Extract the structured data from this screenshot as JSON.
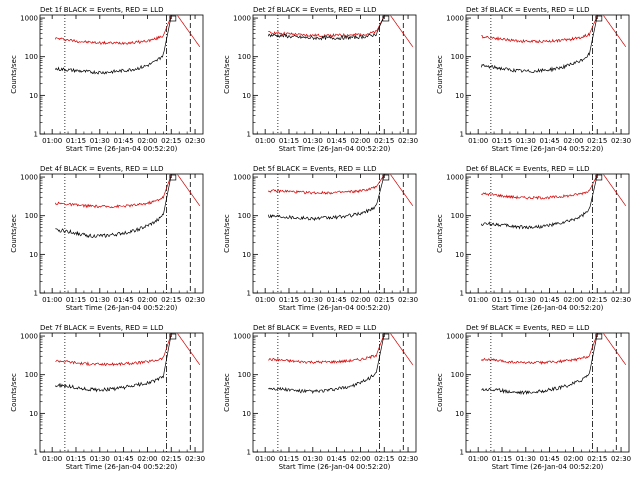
{
  "chart_data": [
    {
      "type": "line",
      "title": "Det 1f BLACK = Events, RED = LLD",
      "xlabel": "Start Time (26-Jan-04 00:52:20)",
      "ylabel": "Counts/sec",
      "x_ticks": [
        "01:00",
        "01:15",
        "01:30",
        "01:45",
        "02:00",
        "02:15",
        "02:30"
      ],
      "y_ticks": [
        "1",
        "10",
        "100",
        "1000"
      ],
      "ylim": [
        1,
        1200
      ],
      "y_scale": "log",
      "series": [
        {
          "color": "#d00000",
          "values": [
            300,
            285,
            265,
            250,
            240,
            232,
            228,
            226,
            226,
            228,
            232,
            242,
            258,
            290,
            350
          ]
        },
        {
          "color": "#000000",
          "values": [
            48,
            47,
            45,
            43,
            41,
            40,
            39,
            40,
            42,
            44,
            47,
            52,
            60,
            75,
            110
          ]
        }
      ]
    },
    {
      "type": "line",
      "title": "Det 2f BLACK = Events, RED = LLD",
      "xlabel": "Start Time (26-Jan-04 00:52:20)",
      "ylabel": "Counts/sec",
      "x_ticks": [
        "01:00",
        "01:15",
        "01:30",
        "01:45",
        "02:00",
        "02:15",
        "02:30"
      ],
      "y_ticks": [
        "1",
        "10",
        "100",
        "1000"
      ],
      "ylim": [
        1,
        1200
      ],
      "y_scale": "log",
      "series": [
        {
          "color": "#d00000",
          "values": [
            420,
            415,
            400,
            385,
            370,
            360,
            355,
            354,
            355,
            358,
            362,
            368,
            378,
            395,
            440
          ]
        },
        {
          "color": "#000000",
          "values": [
            360,
            355,
            345,
            330,
            318,
            310,
            305,
            303,
            304,
            306,
            310,
            316,
            325,
            340,
            385
          ]
        }
      ]
    },
    {
      "type": "line",
      "title": "Det 3f BLACK = Events, RED = LLD",
      "xlabel": "Start Time (26-Jan-04 00:52:20)",
      "ylabel": "Counts/sec",
      "x_ticks": [
        "01:00",
        "01:15",
        "01:30",
        "01:45",
        "02:00",
        "02:15",
        "02:30"
      ],
      "y_ticks": [
        "1",
        "10",
        "100",
        "1000"
      ],
      "ylim": [
        1,
        1200
      ],
      "y_scale": "log",
      "series": [
        {
          "color": "#d00000",
          "values": [
            330,
            320,
            300,
            280,
            265,
            255,
            250,
            248,
            250,
            255,
            262,
            275,
            292,
            320,
            380
          ]
        },
        {
          "color": "#000000",
          "values": [
            58,
            55,
            52,
            48,
            45,
            43,
            42,
            42,
            44,
            47,
            51,
            57,
            66,
            80,
            115
          ]
        }
      ]
    },
    {
      "type": "line",
      "title": "Det 4f BLACK = Events, RED = LLD",
      "xlabel": "Start Time (26-Jan-04 00:52:20)",
      "ylabel": "Counts/sec",
      "x_ticks": [
        "01:00",
        "01:15",
        "01:30",
        "01:45",
        "02:00",
        "02:15",
        "02:30"
      ],
      "y_ticks": [
        "1",
        "10",
        "100",
        "1000"
      ],
      "ylim": [
        1,
        1200
      ],
      "y_scale": "log",
      "series": [
        {
          "color": "#d00000",
          "values": [
            210,
            205,
            195,
            185,
            180,
            175,
            172,
            172,
            174,
            178,
            185,
            195,
            210,
            240,
            300
          ]
        },
        {
          "color": "#000000",
          "values": [
            42,
            41,
            38,
            34,
            31,
            30,
            30,
            31,
            33,
            36,
            40,
            46,
            55,
            70,
            105
          ]
        }
      ]
    },
    {
      "type": "line",
      "title": "Det 5f BLACK = Events, RED = LLD",
      "xlabel": "Start Time (26-Jan-04 00:52:20)",
      "ylabel": "Counts/sec",
      "x_ticks": [
        "01:00",
        "01:15",
        "01:30",
        "01:45",
        "02:00",
        "02:15",
        "02:30"
      ],
      "y_ticks": [
        "1",
        "10",
        "100",
        "1000"
      ],
      "ylim": [
        1,
        1200
      ],
      "y_scale": "log",
      "series": [
        {
          "color": "#d00000",
          "values": [
            440,
            435,
            430,
            420,
            405,
            395,
            392,
            392,
            395,
            400,
            408,
            420,
            440,
            480,
            560
          ]
        },
        {
          "color": "#000000",
          "values": [
            100,
            98,
            96,
            92,
            88,
            86,
            85,
            86,
            88,
            92,
            97,
            104,
            115,
            135,
            180
          ]
        }
      ]
    },
    {
      "type": "line",
      "title": "Det 6f BLACK = Events, RED = LLD",
      "xlabel": "Start Time (26-Jan-04 00:52:20)",
      "ylabel": "Counts/sec",
      "x_ticks": [
        "01:00",
        "01:15",
        "01:30",
        "01:45",
        "02:00",
        "02:15",
        "02:30"
      ],
      "y_ticks": [
        "1",
        "10",
        "100",
        "1000"
      ],
      "ylim": [
        1,
        1200
      ],
      "y_scale": "log",
      "series": [
        {
          "color": "#d00000",
          "values": [
            370,
            360,
            340,
            320,
            305,
            295,
            290,
            290,
            292,
            298,
            308,
            322,
            342,
            375,
            440
          ]
        },
        {
          "color": "#000000",
          "values": [
            60,
            62,
            60,
            56,
            53,
            51,
            50,
            51,
            53,
            57,
            62,
            69,
            80,
            98,
            140
          ]
        }
      ]
    },
    {
      "type": "line",
      "title": "Det 7f BLACK = Events, RED = LLD",
      "xlabel": "Start Time (26-Jan-04 00:52:20)",
      "ylabel": "Counts/sec",
      "x_ticks": [
        "01:00",
        "01:15",
        "01:30",
        "01:45",
        "02:00",
        "02:15",
        "02:30"
      ],
      "y_ticks": [
        "1",
        "10",
        "100",
        "1000"
      ],
      "ylim": [
        1,
        1200
      ],
      "y_scale": "log",
      "series": [
        {
          "color": "#d00000",
          "values": [
            230,
            225,
            212,
            200,
            192,
            188,
            186,
            186,
            188,
            192,
            198,
            206,
            218,
            236,
            270
          ]
        },
        {
          "color": "#000000",
          "values": [
            52,
            52,
            49,
            45,
            42,
            41,
            41,
            42,
            44,
            47,
            51,
            56,
            62,
            70,
            90
          ]
        }
      ]
    },
    {
      "type": "line",
      "title": "Det 8f BLACK = Events, RED = LLD",
      "xlabel": "Start Time (26-Jan-04 00:52:20)",
      "ylabel": "Counts/sec",
      "x_ticks": [
        "01:00",
        "01:15",
        "01:30",
        "01:45",
        "02:00",
        "02:15",
        "02:30"
      ],
      "y_ticks": [
        "1",
        "10",
        "100",
        "1000"
      ],
      "ylim": [
        1,
        1200
      ],
      "y_scale": "log",
      "series": [
        {
          "color": "#d00000",
          "values": [
            250,
            245,
            235,
            225,
            218,
            214,
            212,
            212,
            214,
            218,
            225,
            235,
            250,
            275,
            320
          ]
        },
        {
          "color": "#000000",
          "values": [
            45,
            44,
            42,
            40,
            38,
            37,
            37,
            38,
            40,
            43,
            47,
            53,
            62,
            78,
            115
          ]
        }
      ]
    },
    {
      "type": "line",
      "title": "Det 9f BLACK = Events, RED = LLD",
      "xlabel": "Start Time (26-Jan-04 00:52:20)",
      "ylabel": "Counts/sec",
      "x_ticks": [
        "01:00",
        "01:15",
        "01:30",
        "01:45",
        "02:00",
        "02:15",
        "02:30"
      ],
      "y_ticks": [
        "1",
        "10",
        "100",
        "1000"
      ],
      "ylim": [
        1,
        1200
      ],
      "y_scale": "log",
      "series": [
        {
          "color": "#d00000",
          "values": [
            250,
            245,
            232,
            220,
            212,
            207,
            205,
            205,
            207,
            211,
            218,
            228,
            242,
            265,
            310
          ]
        },
        {
          "color": "#000000",
          "values": [
            42,
            42,
            40,
            38,
            36,
            35,
            35,
            36,
            38,
            41,
            45,
            51,
            60,
            74,
            105
          ]
        }
      ]
    }
  ]
}
